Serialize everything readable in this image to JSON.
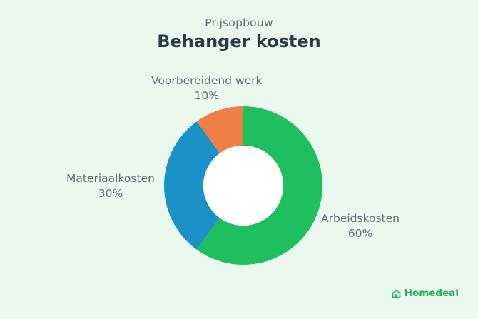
{
  "subtitle": "Prijsopbouw",
  "title": "Behanger kosten",
  "brand": {
    "name": "Homedeal",
    "icon": "house-icon"
  },
  "chart_data": {
    "type": "pie",
    "donut": true,
    "title": "Behanger kosten",
    "subtitle": "Prijsopbouw",
    "slices": [
      {
        "label": "Arbeidskosten",
        "value": 60,
        "display": "60%",
        "color": "#1dbf5e"
      },
      {
        "label": "Materiaalkosten",
        "value": 30,
        "display": "30%",
        "color": "#1a92c8"
      },
      {
        "label": "Voorbereidend werk",
        "value": 10,
        "display": "10%",
        "color": "#f07f47"
      }
    ],
    "legend": "none"
  }
}
